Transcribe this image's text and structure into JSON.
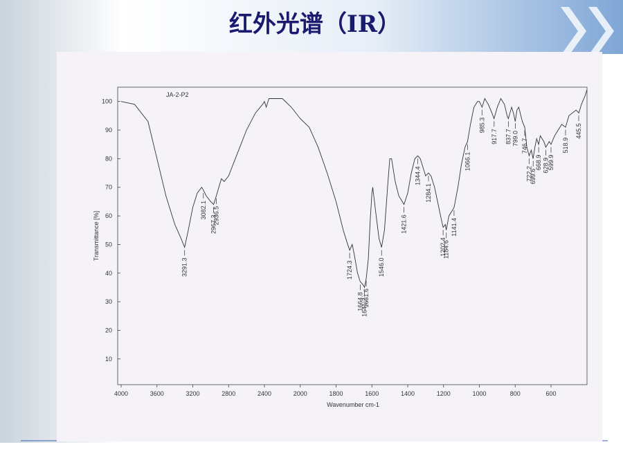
{
  "slide_title": "红外光谱（IR）",
  "chart_data": {
    "type": "line",
    "title": "JA-2-P2",
    "x_label": "Wavenumber cm-1",
    "y_label": "Transmittance [%]",
    "x": [
      4000,
      3850,
      3700,
      3600,
      3500,
      3400,
      3330,
      3291,
      3250,
      3200,
      3150,
      3100,
      3082,
      3050,
      3000,
      2967,
      2937,
      2900,
      2880,
      2850,
      2800,
      2700,
      2600,
      2500,
      2420,
      2400,
      2380,
      2350,
      2300,
      2200,
      2100,
      2000,
      1950,
      1900,
      1850,
      1800,
      1760,
      1740,
      1724,
      1710,
      1700,
      1680,
      1665,
      1650,
      1641,
      1632,
      1620,
      1610,
      1600,
      1595,
      1580,
      1560,
      1546,
      1530,
      1510,
      1500,
      1490,
      1470,
      1450,
      1430,
      1421,
      1400,
      1380,
      1360,
      1344,
      1330,
      1300,
      1284,
      1270,
      1250,
      1230,
      1210,
      1202,
      1190,
      1185,
      1170,
      1150,
      1141,
      1120,
      1100,
      1080,
      1066,
      1050,
      1030,
      1010,
      1000,
      985,
      970,
      950,
      930,
      918,
      900,
      880,
      860,
      845,
      838,
      820,
      810,
      800,
      790,
      780,
      760,
      747,
      735,
      722,
      710,
      700,
      690,
      680,
      669,
      660,
      640,
      629,
      610,
      600,
      580,
      560,
      540,
      519,
      500,
      480,
      460,
      445,
      430,
      410,
      400
    ],
    "values": [
      100,
      99,
      93,
      80,
      67,
      57,
      52,
      49,
      55,
      63,
      68,
      70,
      69,
      67,
      65,
      64,
      67,
      71,
      73,
      72,
      74,
      82,
      90,
      96,
      99,
      100,
      98,
      101,
      101,
      101,
      98,
      94,
      91,
      84,
      75,
      65,
      55,
      51,
      48,
      50,
      47,
      40,
      37,
      36,
      35,
      38,
      45,
      58,
      68,
      70,
      62,
      52,
      49,
      55,
      72,
      80,
      80,
      72,
      67,
      65,
      64,
      68,
      75,
      80,
      81,
      80,
      74,
      75,
      74,
      70,
      64,
      58,
      56,
      57,
      55,
      60,
      62,
      63,
      70,
      78,
      84,
      86,
      92,
      98,
      100,
      100,
      98,
      101,
      99,
      96,
      94,
      98,
      101,
      99,
      95,
      94,
      98,
      96,
      93,
      97,
      98,
      93,
      91,
      84,
      81,
      83,
      80,
      84,
      87,
      85,
      88,
      86,
      84,
      86,
      85,
      88,
      90,
      92,
      91,
      95,
      96,
      97,
      96,
      99,
      102,
      104
    ],
    "color": "#333333",
    "xlim": [
      4000,
      400
    ],
    "xticks": [
      4000,
      3600,
      3200,
      2800,
      2400,
      2000,
      1800,
      1600,
      1400,
      1200,
      1000,
      800,
      600
    ],
    "ylim": [
      1,
      105
    ],
    "yticks": [
      10,
      20,
      30,
      40,
      50,
      60,
      70,
      80,
      90,
      100
    ],
    "peaks": {
      "x": [
        3291.3,
        3082.1,
        2967.3,
        2936.5,
        1724.3,
        1664.8,
        1641.2,
        1631.6,
        1546.0,
        1421.6,
        1344.4,
        1284.1,
        1202.4,
        1184.6,
        1141.4,
        1066.1,
        985.3,
        917.7,
        837.7,
        799.0,
        746.7,
        722.2,
        699.6,
        668.9,
        628.9,
        599.9,
        518.9,
        445.5
      ],
      "labels": [
        "3291.3",
        "3082.1",
        "2967.3",
        "2936.5",
        "1724.3",
        "1664.8",
        "1641.2",
        "1631.6",
        "1546.0",
        "1421.6",
        "1344.4",
        "1284.1",
        "1202.4",
        "1184.6",
        "1141.4",
        "1066.1",
        "985.3",
        "917.7",
        "837.7",
        "799.0",
        "746.7",
        "722.2",
        "699.6",
        "668.9",
        "628.9",
        "599.9",
        "518.9",
        "445.5"
      ]
    }
  }
}
